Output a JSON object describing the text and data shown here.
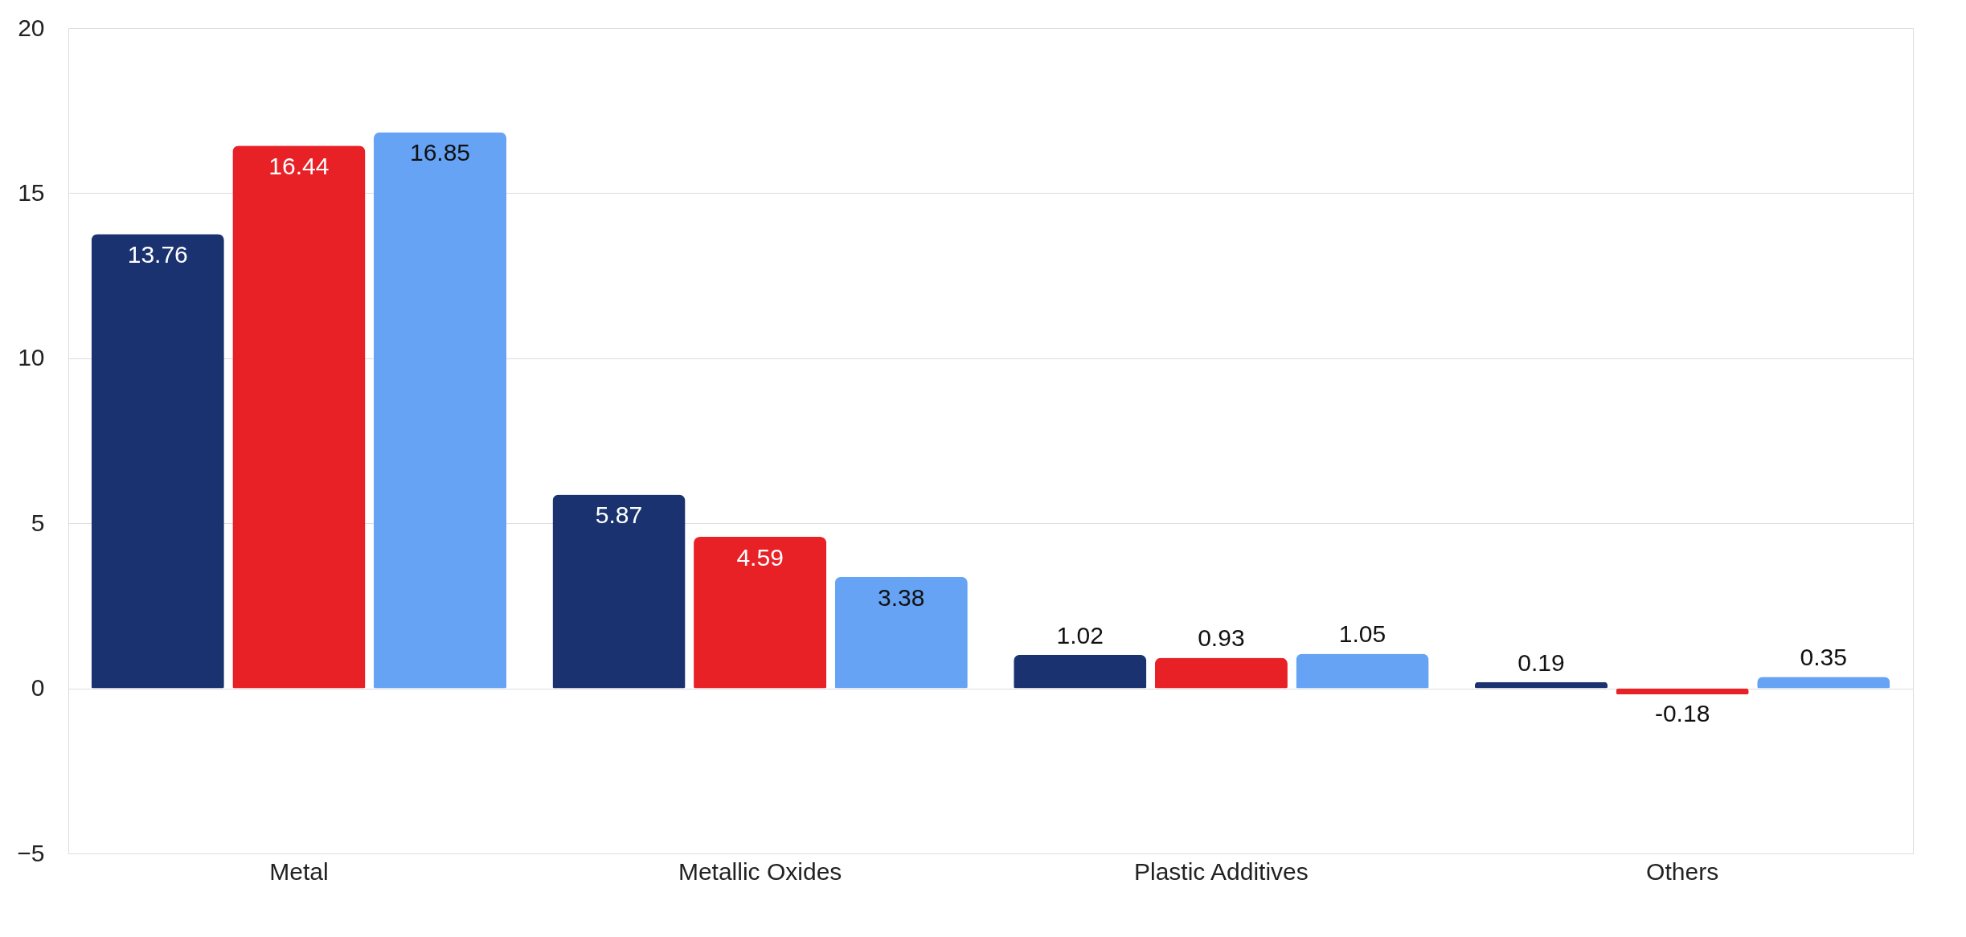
{
  "chart_data": {
    "type": "bar",
    "categories": [
      "Metal",
      "Metallic Oxides",
      "Plastic Additives",
      "Others"
    ],
    "series": [
      {
        "color": "#1a3370",
        "values": [
          13.76,
          5.87,
          1.02,
          0.19
        ]
      },
      {
        "color": "#e82127",
        "values": [
          16.44,
          4.59,
          0.93,
          -0.18
        ]
      },
      {
        "color": "#66a3f5",
        "values": [
          16.85,
          3.38,
          1.05,
          0.35
        ]
      }
    ],
    "ylim": [
      -5,
      20
    ],
    "yticks": [
      -5,
      0,
      5,
      10,
      15,
      20
    ],
    "grid": "y",
    "data_labels": true
  }
}
